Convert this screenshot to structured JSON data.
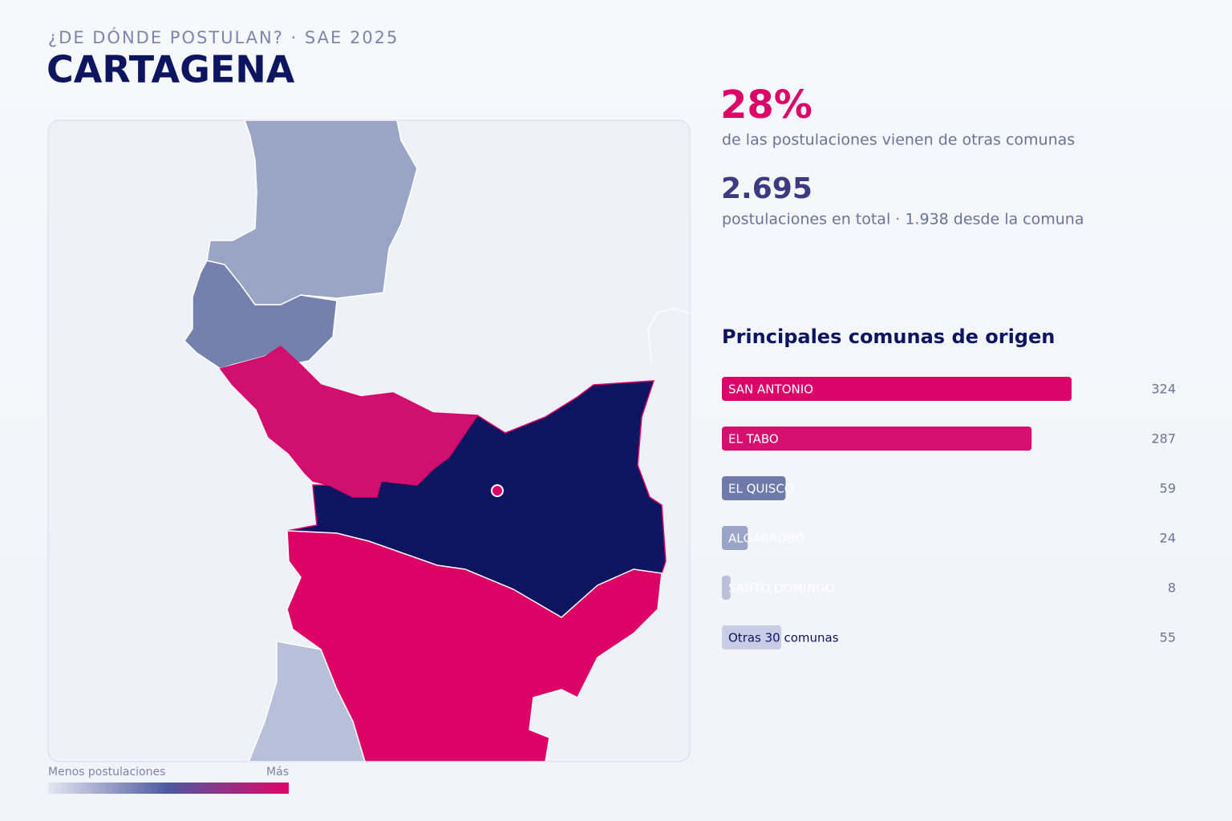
{
  "header": {
    "subtitle": "¿DE DÓNDE POSTULAN? · SAE 2025",
    "title": "CARTAGENA"
  },
  "stats": {
    "share": "28%",
    "share_text": "de las postulaciones vienen de otras comunas",
    "total": "2.695",
    "total_text": "postulaciones en total · 1.938 desde la comuna"
  },
  "legend": {
    "low": "Menos postulaciones",
    "high": "Más"
  },
  "chart_data": {
    "type": "hbar",
    "title": "Principales comunas de origen",
    "categories": [
      "SAN ANTONIO",
      "EL TABO",
      "EL QUISCO",
      "ALGARROBO",
      "SANTO DOMINGO",
      "Otras 30 comunas"
    ],
    "values": [
      324,
      287,
      59,
      24,
      8,
      55
    ],
    "colors": [
      "#db0569",
      "#d5106f",
      "#6f7aab",
      "#9aa4c6",
      "#b9c0d8",
      "#c6cde4"
    ],
    "label_colors": [
      "#ffffff",
      "#ffffff",
      "#ffffff",
      "#ffffff",
      "#ffffff",
      "#0e1560"
    ],
    "xlim": [
      0,
      324
    ]
  }
}
